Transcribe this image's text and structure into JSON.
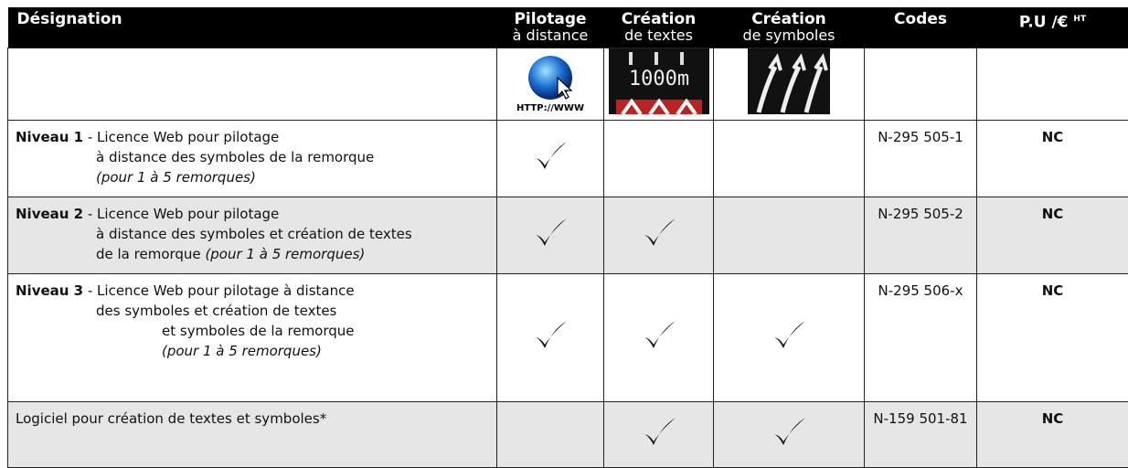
{
  "header": {
    "columns": [
      {
        "title": "Désignation"
      },
      {
        "title": "Pilotage",
        "subtitle": "à distance"
      },
      {
        "title": "Création",
        "subtitle": "de textes"
      },
      {
        "title": "Création",
        "subtitle": "de symboles"
      },
      {
        "title": "Codes"
      },
      {
        "title": "P.U /€",
        "superscript": "HT"
      }
    ]
  },
  "images": {
    "web_label": "HTTP://WWW",
    "sign_label": "1000m"
  },
  "rows": [
    {
      "level": "Niveau 1",
      "lines": [
        [
          {
            "text": " - Licence Web pour pilotage"
          }
        ],
        [
          {
            "text": "à distance des symboles de la remorque"
          }
        ],
        [
          {
            "text": "(pour 1 à 5 remorques)",
            "italic": true
          }
        ]
      ],
      "checks": [
        true,
        false,
        false
      ],
      "code": "N-295 505-1",
      "price": "NC",
      "shaded": false
    },
    {
      "level": "Niveau 2",
      "lines": [
        [
          {
            "text": " - Licence Web pour pilotage"
          }
        ],
        [
          {
            "text": "à distance des symboles et création de textes"
          }
        ],
        [
          {
            "text": "de la remorque "
          },
          {
            "text": "(pour 1 à 5 remorques)",
            "italic": true
          }
        ]
      ],
      "checks": [
        true,
        true,
        false
      ],
      "code": "N-295 505-2",
      "price": "NC",
      "shaded": true
    },
    {
      "level": "Niveau 3",
      "lines": [
        [
          {
            "text": " - Licence Web pour pilotage à distance"
          }
        ],
        [
          {
            "text": "des symboles et création de textes"
          }
        ],
        [
          {
            "text": "et symboles de la remorque"
          }
        ],
        [
          {
            "text": "(pour 1 à 5 remorques)",
            "italic": true
          }
        ]
      ],
      "checks": [
        true,
        true,
        true
      ],
      "code": "N-295 506-x",
      "price": "NC",
      "shaded": false
    },
    {
      "lines": [
        [
          {
            "text": "Logiciel pour création de textes et symboles*"
          }
        ]
      ],
      "checks": [
        false,
        true,
        true
      ],
      "code": "N-159 501-81",
      "price": "NC",
      "shaded": true
    }
  ]
}
